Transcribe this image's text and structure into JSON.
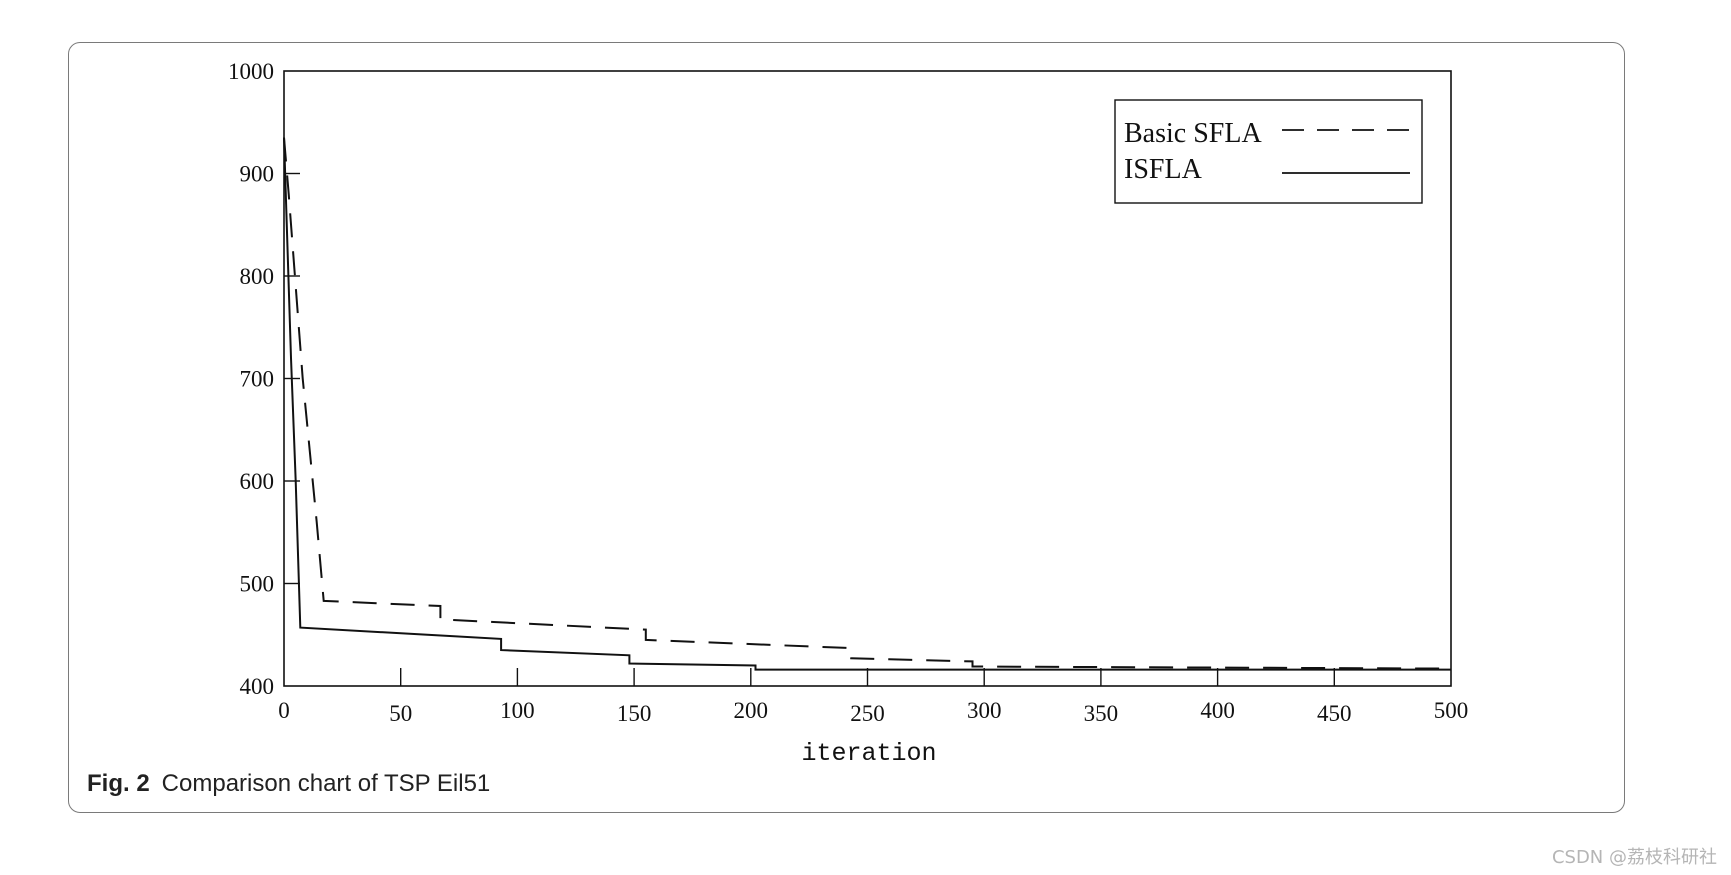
{
  "chart_data": {
    "type": "line",
    "xlabel": "iteration",
    "ylabel": "",
    "xlim": [
      0,
      500
    ],
    "ylim": [
      400,
      1000
    ],
    "x_ticks": [
      "0",
      "50",
      "100",
      "150",
      "200",
      "250",
      "300",
      "350",
      "400",
      "450",
      "500"
    ],
    "y_ticks": [
      "400",
      "500",
      "600",
      "700",
      "800",
      "900",
      "1000"
    ],
    "grid": false,
    "legend_position": "top-right",
    "series": [
      {
        "name": "Basic SFLA",
        "style": "dashed",
        "color": "#111111",
        "points": [
          [
            0,
            935
          ],
          [
            2,
            880
          ],
          [
            8,
            700
          ],
          [
            14,
            560
          ],
          [
            17,
            483
          ],
          [
            67,
            478
          ],
          [
            67,
            465
          ],
          [
            155,
            455
          ],
          [
            155,
            445
          ],
          [
            243,
            437
          ],
          [
            243,
            427
          ],
          [
            295,
            424
          ],
          [
            295,
            419
          ],
          [
            500,
            417
          ]
        ]
      },
      {
        "name": "ISFLA",
        "style": "solid",
        "color": "#111111",
        "points": [
          [
            0,
            935
          ],
          [
            3,
            720
          ],
          [
            5,
            600
          ],
          [
            7,
            457
          ],
          [
            93,
            446
          ],
          [
            93,
            435
          ],
          [
            148,
            430
          ],
          [
            148,
            422
          ],
          [
            202,
            420
          ],
          [
            202,
            416
          ],
          [
            500,
            416
          ]
        ]
      }
    ]
  },
  "caption": {
    "fig_label": "Fig. 2",
    "text": "Comparison chart of TSP Eil51"
  },
  "watermark": "CSDN @荔枝科研社"
}
